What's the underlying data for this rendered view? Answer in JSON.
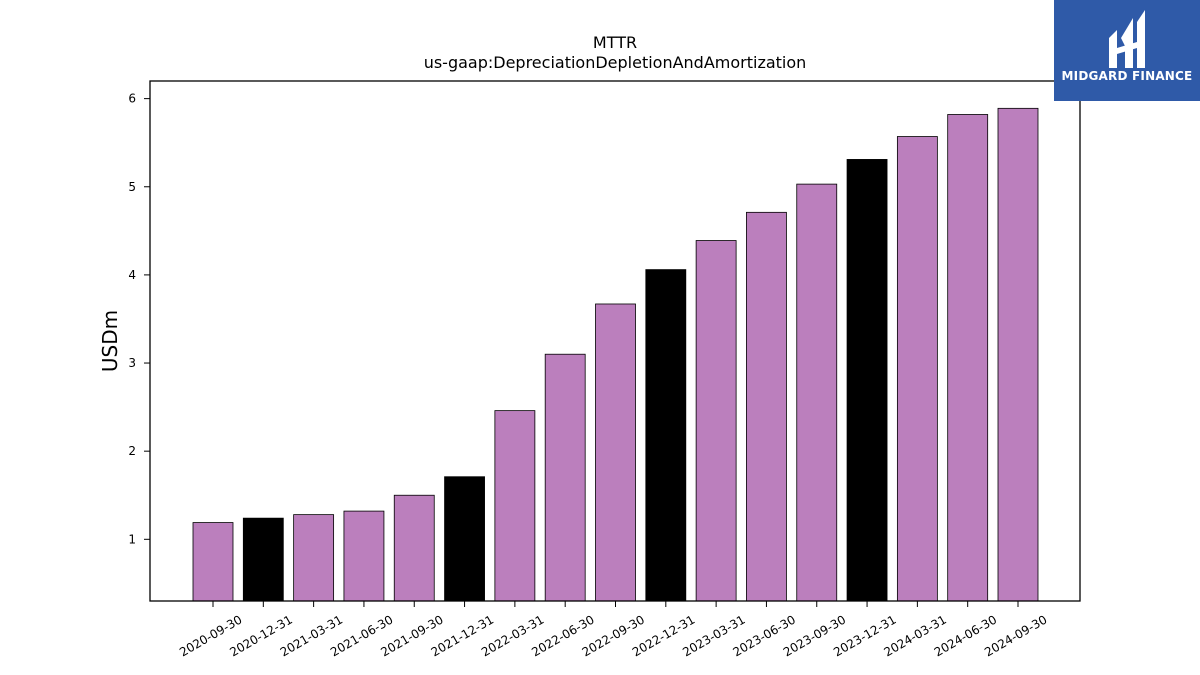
{
  "chart_data": {
    "type": "bar",
    "title": "MTTR",
    "subtitle": "us-gaap:DepreciationDepletionAndAmortization",
    "xlabel": "",
    "ylabel": "USDm",
    "ylim": [
      0.3,
      6.2
    ],
    "yticks": [
      1,
      2,
      3,
      4,
      5,
      6
    ],
    "grid": false,
    "categories": [
      "2020-09-30",
      "2020-12-31",
      "2021-03-31",
      "2021-06-30",
      "2021-09-30",
      "2021-12-31",
      "2022-03-31",
      "2022-06-30",
      "2022-09-30",
      "2022-12-31",
      "2023-03-31",
      "2023-06-30",
      "2023-09-30",
      "2023-12-31",
      "2024-03-31",
      "2024-06-30",
      "2024-09-30"
    ],
    "values": [
      1.19,
      1.24,
      1.28,
      1.32,
      1.5,
      1.71,
      2.46,
      3.1,
      3.67,
      4.06,
      4.39,
      4.71,
      5.03,
      5.31,
      5.57,
      5.82,
      5.89
    ],
    "bar_colors": [
      "#bb7fbd",
      "#000000",
      "#bb7fbd",
      "#bb7fbd",
      "#bb7fbd",
      "#000000",
      "#bb7fbd",
      "#bb7fbd",
      "#bb7fbd",
      "#000000",
      "#bb7fbd",
      "#bb7fbd",
      "#bb7fbd",
      "#000000",
      "#bb7fbd",
      "#bb7fbd",
      "#bb7fbd"
    ]
  },
  "logo": {
    "text": "MIDGARD FINANCE",
    "background": "#2f5aa8"
  }
}
